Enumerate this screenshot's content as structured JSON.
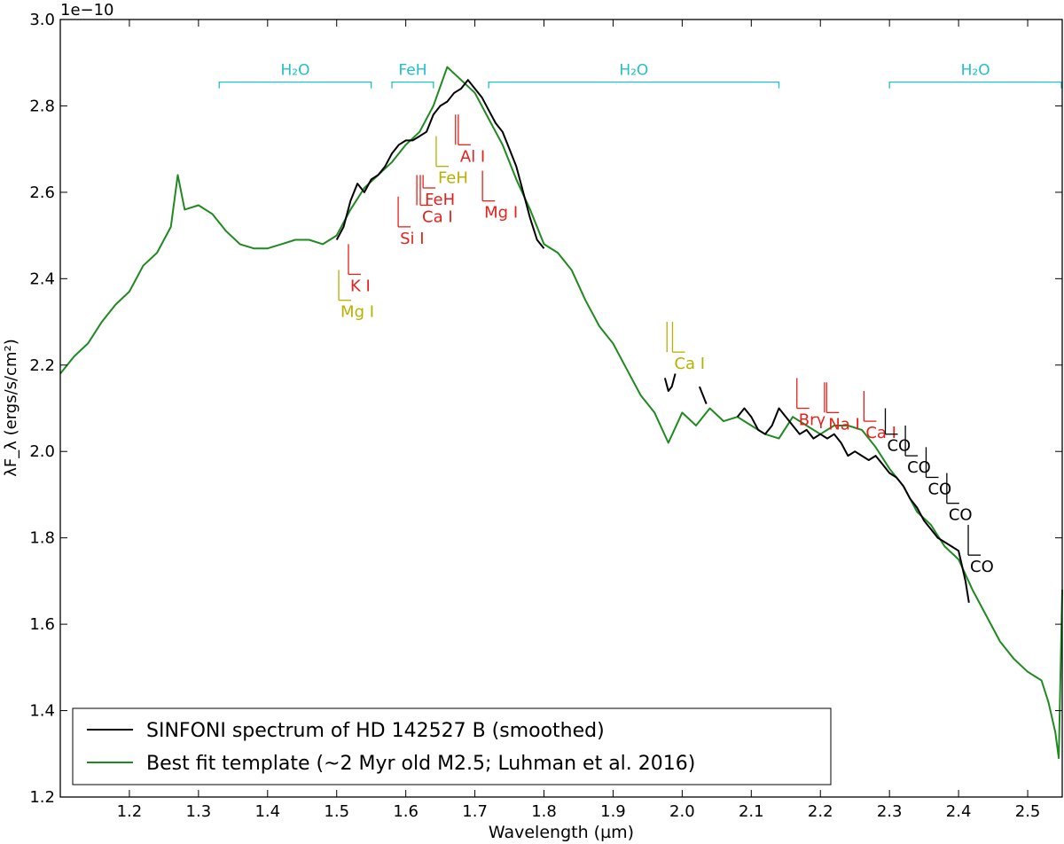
{
  "chart_data": {
    "type": "line",
    "title": "",
    "xlabel": "Wavelength (µm)",
    "ylabel": "λF_λ (ergs/s/cm²)",
    "offset_text": "1e−10",
    "xlim": [
      1.1,
      2.55
    ],
    "ylim": [
      1.2,
      3.0
    ],
    "xticks": [
      "1.2",
      "1.3",
      "1.4",
      "1.5",
      "1.6",
      "1.7",
      "1.8",
      "1.9",
      "2.0",
      "2.1",
      "2.2",
      "2.3",
      "2.4",
      "2.5"
    ],
    "yticks": [
      "1.2",
      "1.4",
      "1.6",
      "1.8",
      "2.0",
      "2.2",
      "2.4",
      "2.6",
      "2.8",
      "3.0"
    ],
    "grid": false,
    "legend_position": "bottom-left",
    "series": [
      {
        "name": "SINFONI spectrum of HD 142527 B (smoothed)",
        "color": "#000000",
        "segments": [
          [
            [
              1.5,
              2.49
            ],
            [
              1.51,
              2.52
            ],
            [
              1.52,
              2.58
            ],
            [
              1.53,
              2.62
            ],
            [
              1.54,
              2.6
            ],
            [
              1.55,
              2.63
            ],
            [
              1.56,
              2.64
            ],
            [
              1.57,
              2.66
            ],
            [
              1.58,
              2.69
            ],
            [
              1.59,
              2.71
            ],
            [
              1.6,
              2.72
            ],
            [
              1.61,
              2.72
            ],
            [
              1.62,
              2.73
            ],
            [
              1.63,
              2.74
            ],
            [
              1.64,
              2.78
            ],
            [
              1.65,
              2.8
            ],
            [
              1.66,
              2.81
            ],
            [
              1.67,
              2.83
            ],
            [
              1.68,
              2.84
            ],
            [
              1.69,
              2.86
            ],
            [
              1.7,
              2.84
            ],
            [
              1.71,
              2.82
            ],
            [
              1.72,
              2.79
            ],
            [
              1.73,
              2.76
            ],
            [
              1.74,
              2.74
            ],
            [
              1.75,
              2.7
            ],
            [
              1.76,
              2.66
            ],
            [
              1.77,
              2.6
            ],
            [
              1.78,
              2.54
            ],
            [
              1.79,
              2.49
            ],
            [
              1.8,
              2.47
            ]
          ],
          [
            [
              1.975,
              2.17
            ],
            [
              1.98,
              2.14
            ],
            [
              1.985,
              2.15
            ],
            [
              1.99,
              2.18
            ]
          ],
          [
            [
              2.025,
              2.15
            ],
            [
              2.03,
              2.13
            ],
            [
              2.035,
              2.11
            ]
          ],
          [
            [
              2.08,
              2.08
            ],
            [
              2.09,
              2.1
            ],
            [
              2.1,
              2.08
            ],
            [
              2.11,
              2.05
            ],
            [
              2.12,
              2.04
            ],
            [
              2.13,
              2.06
            ],
            [
              2.14,
              2.1
            ],
            [
              2.15,
              2.08
            ],
            [
              2.16,
              2.06
            ],
            [
              2.17,
              2.04
            ],
            [
              2.18,
              2.05
            ],
            [
              2.19,
              2.03
            ],
            [
              2.2,
              2.04
            ],
            [
              2.21,
              2.03
            ],
            [
              2.22,
              2.04
            ],
            [
              2.23,
              2.02
            ],
            [
              2.24,
              1.99
            ],
            [
              2.25,
              2.0
            ],
            [
              2.26,
              1.99
            ],
            [
              2.27,
              1.98
            ],
            [
              2.28,
              1.99
            ],
            [
              2.29,
              1.97
            ],
            [
              2.3,
              1.95
            ],
            [
              2.31,
              1.94
            ],
            [
              2.32,
              1.92
            ],
            [
              2.33,
              1.89
            ],
            [
              2.34,
              1.87
            ],
            [
              2.35,
              1.84
            ],
            [
              2.36,
              1.82
            ],
            [
              2.37,
              1.8
            ],
            [
              2.38,
              1.79
            ],
            [
              2.39,
              1.78
            ],
            [
              2.4,
              1.77
            ],
            [
              2.41,
              1.7
            ],
            [
              2.415,
              1.65
            ]
          ]
        ]
      },
      {
        "name": "Best fit template (~2 Myr old M2.5; Luhman et al. 2016)",
        "color": "#1f8a1f",
        "segments": [
          [
            [
              1.1,
              2.18
            ],
            [
              1.12,
              2.22
            ],
            [
              1.14,
              2.25
            ],
            [
              1.16,
              2.3
            ],
            [
              1.18,
              2.34
            ],
            [
              1.2,
              2.37
            ],
            [
              1.22,
              2.43
            ],
            [
              1.24,
              2.46
            ],
            [
              1.26,
              2.52
            ],
            [
              1.27,
              2.64
            ],
            [
              1.28,
              2.56
            ],
            [
              1.3,
              2.57
            ],
            [
              1.32,
              2.55
            ],
            [
              1.34,
              2.51
            ],
            [
              1.36,
              2.48
            ],
            [
              1.38,
              2.47
            ],
            [
              1.4,
              2.47
            ],
            [
              1.42,
              2.48
            ],
            [
              1.44,
              2.49
            ],
            [
              1.46,
              2.49
            ],
            [
              1.48,
              2.48
            ],
            [
              1.5,
              2.5
            ],
            [
              1.52,
              2.56
            ],
            [
              1.54,
              2.61
            ],
            [
              1.56,
              2.64
            ],
            [
              1.58,
              2.67
            ],
            [
              1.6,
              2.71
            ],
            [
              1.62,
              2.74
            ],
            [
              1.64,
              2.8
            ],
            [
              1.66,
              2.89
            ],
            [
              1.68,
              2.86
            ],
            [
              1.7,
              2.83
            ],
            [
              1.72,
              2.77
            ],
            [
              1.74,
              2.71
            ],
            [
              1.76,
              2.63
            ],
            [
              1.78,
              2.56
            ],
            [
              1.8,
              2.48
            ],
            [
              1.82,
              2.46
            ],
            [
              1.84,
              2.42
            ],
            [
              1.86,
              2.35
            ],
            [
              1.88,
              2.29
            ],
            [
              1.9,
              2.25
            ],
            [
              1.92,
              2.19
            ],
            [
              1.94,
              2.13
            ],
            [
              1.96,
              2.09
            ],
            [
              1.98,
              2.02
            ],
            [
              2.0,
              2.09
            ],
            [
              2.02,
              2.06
            ],
            [
              2.04,
              2.1
            ],
            [
              2.06,
              2.07
            ],
            [
              2.08,
              2.08
            ],
            [
              2.1,
              2.06
            ],
            [
              2.12,
              2.04
            ],
            [
              2.14,
              2.03
            ],
            [
              2.16,
              2.08
            ],
            [
              2.18,
              2.06
            ],
            [
              2.2,
              2.04
            ],
            [
              2.22,
              2.06
            ],
            [
              2.24,
              2.06
            ],
            [
              2.26,
              2.05
            ],
            [
              2.28,
              2.01
            ],
            [
              2.3,
              1.96
            ],
            [
              2.32,
              1.92
            ],
            [
              2.34,
              1.86
            ],
            [
              2.36,
              1.83
            ],
            [
              2.38,
              1.78
            ],
            [
              2.4,
              1.75
            ],
            [
              2.42,
              1.68
            ],
            [
              2.44,
              1.62
            ],
            [
              2.46,
              1.56
            ],
            [
              2.48,
              1.52
            ],
            [
              2.5,
              1.49
            ],
            [
              2.52,
              1.47
            ],
            [
              2.53,
              1.42
            ],
            [
              2.54,
              1.35
            ],
            [
              2.545,
              1.29
            ],
            [
              2.55,
              1.68
            ]
          ]
        ]
      }
    ],
    "band_labels": [
      {
        "text": "H₂O",
        "x0": 1.33,
        "x1": 1.55,
        "color": "#22c0c8"
      },
      {
        "text": "FeH",
        "x0": 1.58,
        "x1": 1.64,
        "color": "#22c0c8"
      },
      {
        "text": "H₂O",
        "x0": 1.72,
        "x1": 2.14,
        "color": "#22c0c8"
      },
      {
        "text": "H₂O",
        "x0": 2.3,
        "x1": 2.55,
        "color": "#22c0c8"
      }
    ],
    "line_labels": [
      {
        "text": "K I",
        "color": "#e8201a",
        "lines": [
          1.517,
          1.517
        ],
        "ytop": 2.48,
        "ybot": 2.41
      },
      {
        "text": "Mg I",
        "color": "#b8b000",
        "lines": [
          1.503,
          1.503
        ],
        "ytop": 2.42,
        "ybot": 2.35
      },
      {
        "text": "Si I",
        "color": "#e8201a",
        "lines": [
          1.589,
          1.589
        ],
        "ytop": 2.59,
        "ybot": 2.52
      },
      {
        "text": "Ca I",
        "color": "#e8201a",
        "lines": [
          1.616,
          1.621
        ],
        "ytop": 2.64,
        "ybot": 2.57
      },
      {
        "text": "FeH",
        "color": "#e8201a",
        "lines": [
          1.625,
          1.625
        ],
        "ytop": 2.64,
        "ybot": 2.61
      },
      {
        "text": "FeH",
        "color": "#b8b000",
        "lines": [
          1.644,
          1.644
        ],
        "ytop": 2.73,
        "ybot": 2.66
      },
      {
        "text": "Al I",
        "color": "#e8201a",
        "lines": [
          1.672,
          1.676
        ],
        "ytop": 2.78,
        "ybot": 2.71
      },
      {
        "text": "Mg I",
        "color": "#e8201a",
        "lines": [
          1.711,
          1.711
        ],
        "ytop": 2.65,
        "ybot": 2.58
      },
      {
        "text": "Ca I",
        "color": "#b8b000",
        "lines": [
          1.978,
          1.986
        ],
        "ytop": 2.3,
        "ybot": 2.23
      },
      {
        "text": "Brγ",
        "color": "#e8201a",
        "lines": [
          2.166,
          2.166
        ],
        "ytop": 2.17,
        "ybot": 2.1
      },
      {
        "text": "Na I",
        "color": "#e8201a",
        "lines": [
          2.206,
          2.209
        ],
        "ytop": 2.16,
        "ybot": 2.09
      },
      {
        "text": "Ca I",
        "color": "#e8201a",
        "lines": [
          2.263,
          2.263
        ],
        "ytop": 2.14,
        "ybot": 2.07
      },
      {
        "text": "CO",
        "color": "#000000",
        "lines": [
          2.294,
          2.294
        ],
        "ytop": 2.1,
        "ybot": 2.04
      },
      {
        "text": "CO",
        "color": "#000000",
        "lines": [
          2.323,
          2.323
        ],
        "ytop": 2.06,
        "ybot": 1.99
      },
      {
        "text": "CO",
        "color": "#000000",
        "lines": [
          2.353,
          2.353
        ],
        "ytop": 2.01,
        "ybot": 1.94
      },
      {
        "text": "CO",
        "color": "#000000",
        "lines": [
          2.383,
          2.383
        ],
        "ytop": 1.95,
        "ybot": 1.88
      },
      {
        "text": "CO",
        "color": "#000000",
        "lines": [
          2.414,
          2.414
        ],
        "ytop": 1.83,
        "ybot": 1.76
      }
    ]
  }
}
